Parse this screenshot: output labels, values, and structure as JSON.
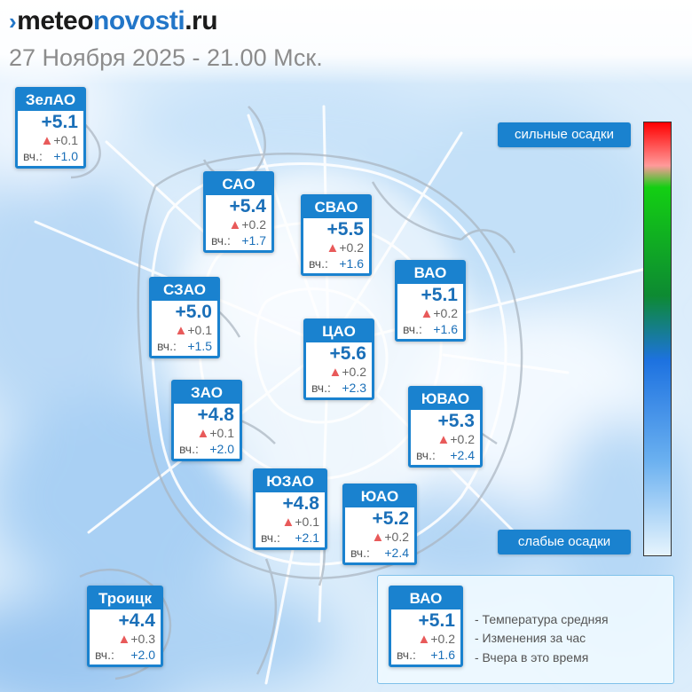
{
  "header": {
    "logo_mark": "›",
    "logo_part1": "meteo",
    "logo_part2": "novosti",
    "logo_part3": ".ru",
    "date_line": "27 Ноября 2025 - 21.00 Мск."
  },
  "districts": [
    {
      "name": "ЗелАО",
      "temp": "+5.1",
      "delta": "+0.1",
      "yest_label": "вч.:",
      "yest_value": "+1.0"
    },
    {
      "name": "САО",
      "temp": "+5.4",
      "delta": "+0.2",
      "yest_label": "вч.:",
      "yest_value": "+1.7"
    },
    {
      "name": "СВАО",
      "temp": "+5.5",
      "delta": "+0.2",
      "yest_label": "вч.:",
      "yest_value": "+1.6"
    },
    {
      "name": "ВАО",
      "temp": "+5.1",
      "delta": "+0.2",
      "yest_label": "вч.:",
      "yest_value": "+1.6"
    },
    {
      "name": "СЗАО",
      "temp": "+5.0",
      "delta": "+0.1",
      "yest_label": "вч.:",
      "yest_value": "+1.5"
    },
    {
      "name": "ЦАО",
      "temp": "+5.6",
      "delta": "+0.2",
      "yest_label": "вч.:",
      "yest_value": "+2.3"
    },
    {
      "name": "ЗАО",
      "temp": "+4.8",
      "delta": "+0.1",
      "yest_label": "вч.:",
      "yest_value": "+2.0"
    },
    {
      "name": "ЮВАО",
      "temp": "+5.3",
      "delta": "+0.2",
      "yest_label": "вч.:",
      "yest_value": "+2.4"
    },
    {
      "name": "ЮЗАО",
      "temp": "+4.8",
      "delta": "+0.1",
      "yest_label": "вч.:",
      "yest_value": "+2.1"
    },
    {
      "name": "ЮАО",
      "temp": "+5.2",
      "delta": "+0.2",
      "yest_label": "вч.:",
      "yest_value": "+2.4"
    },
    {
      "name": "Троицк",
      "temp": "+4.4",
      "delta": "+0.3",
      "yest_label": "вч.:",
      "yest_value": "+2.0"
    }
  ],
  "precip_scale": {
    "strong_label": "сильные осадки",
    "weak_label": "слабые осадки",
    "colors": [
      "#ff0000",
      "#ff9a9a",
      "#13cf13",
      "#0d8a32",
      "#1d72e0",
      "#6ab0f0",
      "#e6f4fd"
    ]
  },
  "key": {
    "sample": {
      "name": "ВАО",
      "temp": "+5.1",
      "delta": "+0.2",
      "yest_label": "вч.:",
      "yest_value": "+1.6"
    },
    "line1": "- Температура средняя",
    "line2": "- Изменения за час",
    "line3": "- Вчера в это время"
  },
  "icons": {
    "change_up": "▲"
  },
  "colors": {
    "accent": "#1a82cf",
    "temp_text": "#1a6fb8",
    "delta_triangle": "#e85a5a"
  }
}
